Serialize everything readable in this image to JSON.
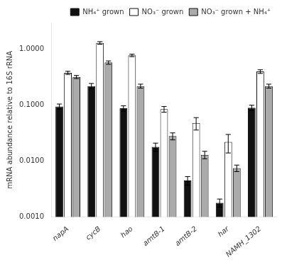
{
  "chart_data": {
    "type": "bar",
    "categories": [
      "napA",
      "cycB",
      "hao",
      "amtB-1",
      "amtB-2",
      "har",
      "NAMH_1302"
    ],
    "series": [
      {
        "name": "NH₄⁺ grown",
        "color": "#111111",
        "values": [
          0.095,
          0.22,
          0.088,
          0.018,
          0.0045,
          0.0018,
          0.09
        ],
        "errors": [
          0.01,
          0.025,
          0.01,
          0.003,
          0.0008,
          0.0003,
          0.01
        ]
      },
      {
        "name": "NO₃⁻ grown",
        "color": "#ffffff",
        "values": [
          0.38,
          1.3,
          0.78,
          0.085,
          0.048,
          0.022,
          0.4
        ],
        "errors": [
          0.025,
          0.07,
          0.04,
          0.01,
          0.012,
          0.008,
          0.03
        ]
      },
      {
        "name": "NO₃⁻ grown + NH₄⁺",
        "color": "#aaaaaa",
        "values": [
          0.32,
          0.58,
          0.22,
          0.028,
          0.013,
          0.0075,
          0.22
        ],
        "errors": [
          0.02,
          0.04,
          0.018,
          0.004,
          0.002,
          0.001,
          0.018
        ]
      }
    ],
    "ylabel": "mRNA abundance relative to 16S rRNA",
    "log": "y",
    "ylim": [
      0.001,
      3.0
    ],
    "yticks": [
      {
        "value": 0.001,
        "label": "0.0010"
      },
      {
        "value": 0.01,
        "label": "0.0100"
      },
      {
        "value": 0.1,
        "label": "0.1000"
      },
      {
        "value": 1.0,
        "label": "1.0000"
      }
    ],
    "grid": false,
    "legend": "upper right"
  }
}
